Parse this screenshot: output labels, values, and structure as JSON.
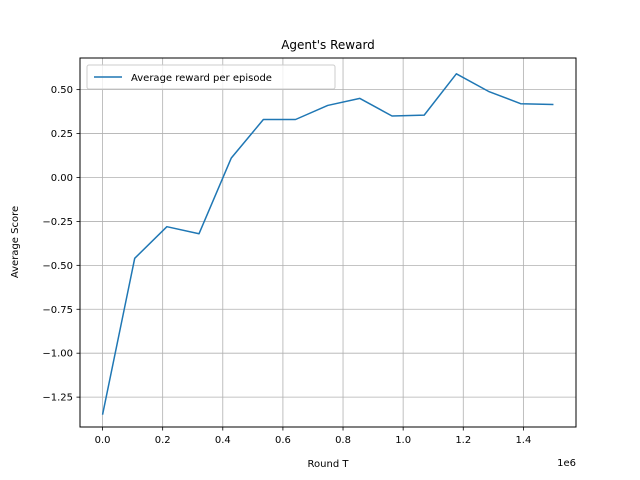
{
  "chart_data": {
    "type": "line",
    "title": "Agent's Reward",
    "xlabel": "Round T",
    "ylabel": "Average Score",
    "x_offset_text": "1e6",
    "xlim": [
      -0.075,
      1.575
    ],
    "ylim": [
      -1.42,
      0.68
    ],
    "grid": true,
    "legend_position": "upper-left",
    "x_ticks": [
      0.0,
      0.2,
      0.4,
      0.6,
      0.8,
      1.0,
      1.2,
      1.4
    ],
    "x_tick_labels": [
      "0.0",
      "0.2",
      "0.4",
      "0.6",
      "0.8",
      "1.0",
      "1.2",
      "1.4"
    ],
    "y_ticks": [
      -1.25,
      -1.0,
      -0.75,
      -0.5,
      -0.25,
      0.0,
      0.25,
      0.5
    ],
    "y_tick_labels": [
      "−1.25",
      "−1.00",
      "−0.75",
      "−0.50",
      "−0.25",
      "0.00",
      "0.25",
      "0.50"
    ],
    "series": [
      {
        "name": "Average reward per episode",
        "color": "#1f77b4",
        "x": [
          0.0,
          0.107,
          0.214,
          0.321,
          0.428,
          0.535,
          0.642,
          0.749,
          0.856,
          0.963,
          1.07,
          1.177,
          1.284,
          1.391,
          1.5
        ],
        "y": [
          -1.35,
          -0.46,
          -0.28,
          -0.32,
          0.11,
          0.33,
          0.33,
          0.41,
          0.45,
          0.35,
          0.355,
          0.59,
          0.49,
          0.42,
          0.415
        ]
      }
    ]
  }
}
